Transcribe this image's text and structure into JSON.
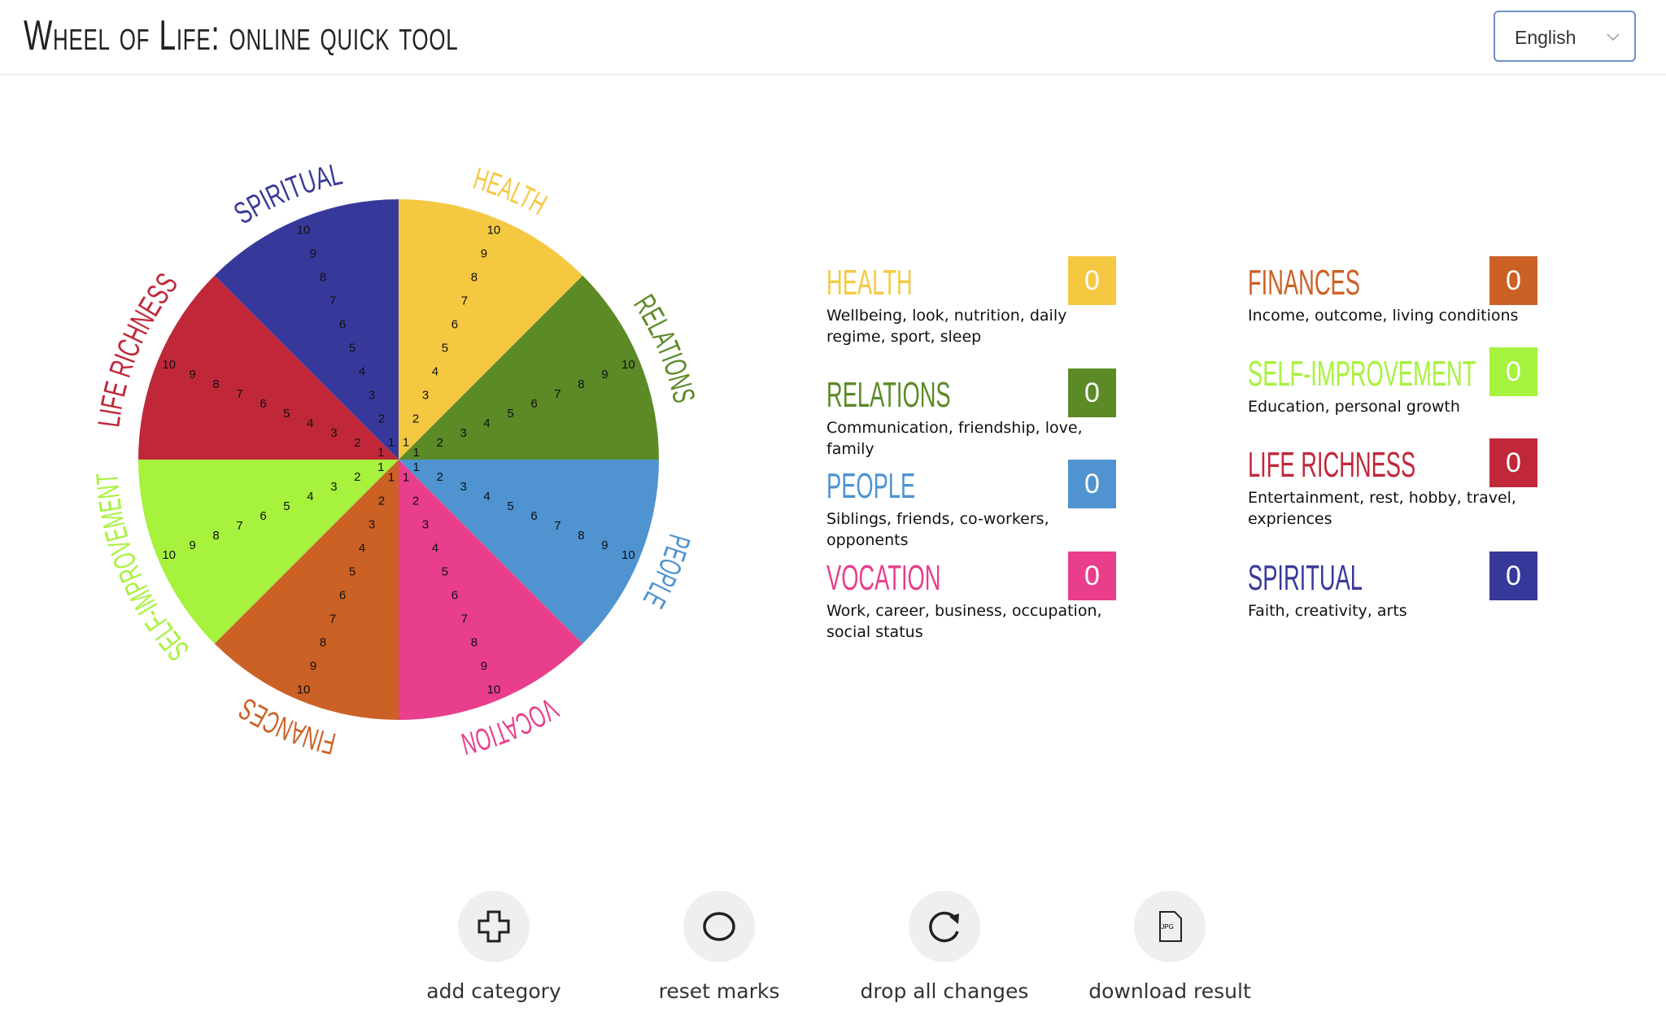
{
  "header": {
    "title": "Wheel of Life: online quick tool",
    "language": "English"
  },
  "wheel": {
    "scale": [
      1,
      2,
      3,
      4,
      5,
      6,
      7,
      8,
      9,
      10
    ],
    "categories": [
      {
        "name": "HEALTH",
        "description": "Wellbeing, look, nutrition, daily regime, sport, sleep",
        "score": 0,
        "color": "#f5c842"
      },
      {
        "name": "RELATIONS",
        "description": "Communication, friendship, love, family",
        "score": 0,
        "color": "#5b8a27"
      },
      {
        "name": "PEOPLE",
        "description": "Siblings, friends, co-workers, opponents",
        "score": 0,
        "color": "#4f93d0"
      },
      {
        "name": "VOCATION",
        "description": "Work, career, business, occupation, social status",
        "score": 0,
        "color": "#e83e8c"
      },
      {
        "name": "FINANCES",
        "description": "Income, outcome, living conditions",
        "score": 0,
        "color": "#cc6125"
      },
      {
        "name": "SELF-IMPROVEMENT",
        "description": "Education, personal growth",
        "score": 0,
        "color": "#a6f23c"
      },
      {
        "name": "LIFE RICHNESS",
        "description": "Entertainment, rest, hobby, travel, expriences",
        "score": 0,
        "color": "#c0283a"
      },
      {
        "name": "SPIRITUAL",
        "description": "Faith, creativity, arts",
        "score": 0,
        "color": "#37399a"
      }
    ]
  },
  "actions": [
    {
      "label": "add category"
    },
    {
      "label": "reset marks"
    },
    {
      "label": "drop all changes"
    },
    {
      "label": "download result",
      "icon_text": "JPG"
    }
  ]
}
